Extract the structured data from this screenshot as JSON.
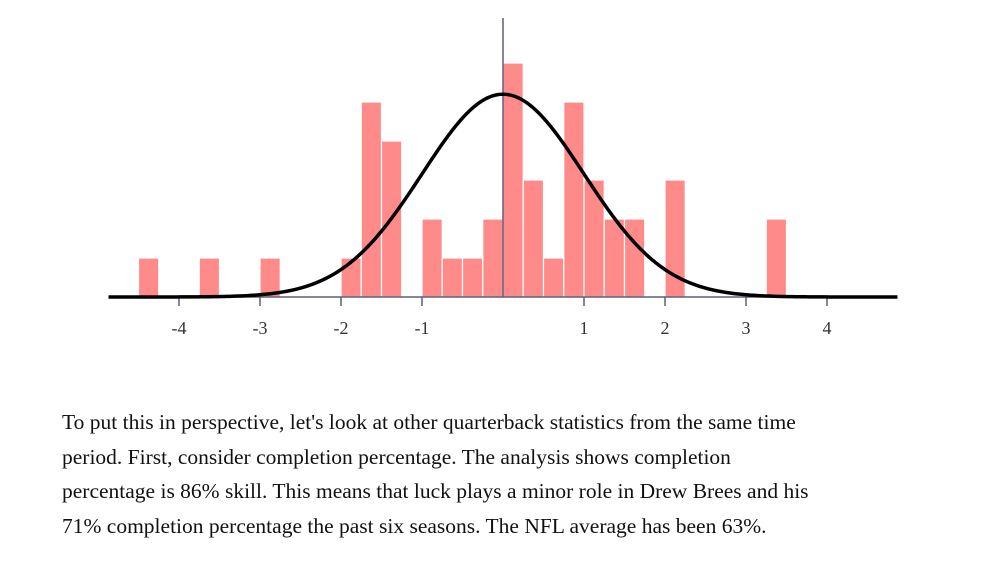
{
  "chart_data": {
    "type": "bar",
    "title": "",
    "xlabel": "",
    "ylabel": "",
    "xlim": [
      -4.87,
      4.87
    ],
    "ylim": [
      0,
      6
    ],
    "grid": false,
    "legend": "none",
    "bin_width": 0.25,
    "x_ticks": [
      {
        "value": -4,
        "label": "-4"
      },
      {
        "value": -3,
        "label": "-3"
      },
      {
        "value": -2,
        "label": "-2"
      },
      {
        "value": -1,
        "label": "-1"
      },
      {
        "value": 1,
        "label": "1"
      },
      {
        "value": 2,
        "label": "2"
      },
      {
        "value": 3,
        "label": "3"
      },
      {
        "value": 4,
        "label": "4"
      }
    ],
    "bins": [
      {
        "x0": -4.5,
        "count": 1
      },
      {
        "x0": -3.75,
        "count": 1
      },
      {
        "x0": -3.0,
        "count": 1
      },
      {
        "x0": -2.0,
        "count": 1
      },
      {
        "x0": -1.75,
        "count": 5
      },
      {
        "x0": -1.5,
        "count": 4
      },
      {
        "x0": -1.0,
        "count": 2
      },
      {
        "x0": -0.75,
        "count": 1
      },
      {
        "x0": -0.5,
        "count": 1
      },
      {
        "x0": -0.25,
        "count": 2
      },
      {
        "x0": 0.0,
        "count": 6
      },
      {
        "x0": 0.25,
        "count": 3
      },
      {
        "x0": 0.5,
        "count": 1
      },
      {
        "x0": 0.75,
        "count": 5
      },
      {
        "x0": 1.0,
        "count": 3
      },
      {
        "x0": 1.25,
        "count": 2
      },
      {
        "x0": 1.5,
        "count": 2
      },
      {
        "x0": 2.0,
        "count": 3
      },
      {
        "x0": 3.25,
        "count": 2
      }
    ],
    "overlay": {
      "type": "line",
      "name": "standard normal curve",
      "mean": 0,
      "sd": 1,
      "peak_count": 5.2
    },
    "vertical_reference_line_x": 0,
    "colors": {
      "bar": "#ff8a8a",
      "curve": "#000000",
      "axis": "#5d5f78"
    }
  },
  "paragraph": {
    "lines": [
      "To put this in perspective, let's look at other quarterback statistics from the same time",
      "period. First, consider completion percentage. The analysis shows completion",
      "percentage is 86% skill. This means that luck plays a minor role in Drew Brees and his",
      "71% completion percentage the past six seasons. The NFL average has been 63%."
    ]
  }
}
